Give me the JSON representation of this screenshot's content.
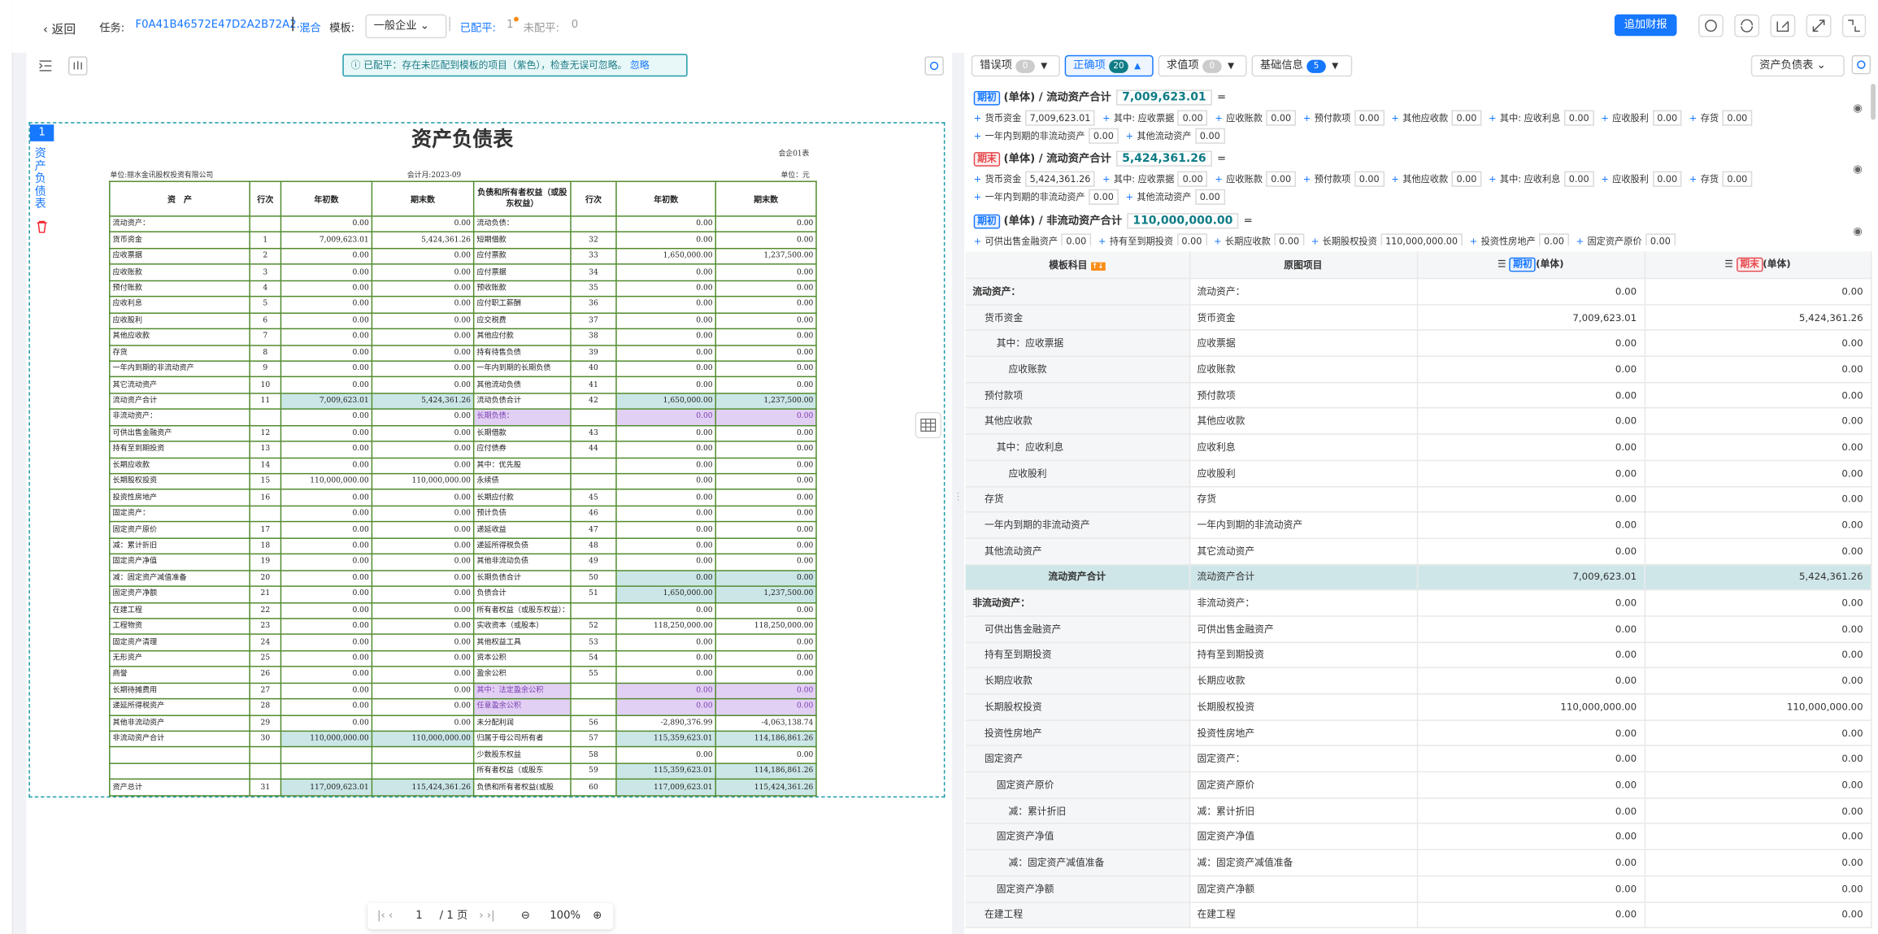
{
  "topbar": {
    "back": "返回",
    "task_label": "任务:",
    "task_id": "F0A41B46572E47D2A2B72A2...",
    "mode": "混合",
    "template_label": "模板:",
    "template": "一般企业",
    "balanced_label": "已配平:",
    "balanced": "1",
    "unbalanced_label": "未配平:",
    "unbalanced": "0",
    "append_button": "追加财报"
  },
  "left": {
    "notice": "已配平：存在未匹配到模板的项目（紫色），检查无误可忽略。",
    "ignore": "忽略",
    "page_badge": "1",
    "page_name": "资产负债表",
    "pager": {
      "current": "1",
      "total": "/ 1 页",
      "zoom": "100%"
    },
    "doc": {
      "title": "资产负债表",
      "form_no": "会企01表",
      "company": "单位:丽水金讯股权投资有限公司",
      "period": "会计月:2023-09",
      "unit": "单位：元",
      "table": {
        "header": [
          "资　产",
          "行次",
          "年初数",
          "期末数",
          "负债和所有者权益（或股东权益）",
          "行次",
          "年初数",
          "期末数"
        ],
        "rows": [
          {
            "cells": [
              "流动资产：",
              null,
              "0.00",
              "0.00",
              "流动负债：",
              null,
              "0.00",
              "0.00"
            ],
            "hl": [
              null,
              null
            ]
          },
          {
            "cells": [
              "货币资金",
              "1",
              "7,009,623.01",
              "5,424,361.26",
              "短期借款",
              "32",
              "0.00",
              "0.00"
            ],
            "hl": [
              null,
              null
            ]
          },
          {
            "cells": [
              "应收票据",
              "2",
              "0.00",
              "0.00",
              "应付票款",
              "33",
              "1,650,000.00",
              "1,237,500.00"
            ],
            "hl": [
              null,
              null
            ]
          },
          {
            "cells": [
              "应收账款",
              "3",
              "0.00",
              "0.00",
              "应付票据",
              "34",
              "0.00",
              "0.00"
            ],
            "hl": [
              null,
              null
            ]
          },
          {
            "cells": [
              "预付账款",
              "4",
              "0.00",
              "0.00",
              "预收账款",
              "35",
              "0.00",
              "0.00"
            ],
            "hl": [
              null,
              null
            ]
          },
          {
            "cells": [
              "应收利息",
              "5",
              "0.00",
              "0.00",
              "应付职工薪酬",
              "36",
              "0.00",
              "0.00"
            ],
            "hl": [
              null,
              null
            ]
          },
          {
            "cells": [
              "应收股利",
              "6",
              "0.00",
              "0.00",
              "应交税费",
              "37",
              "0.00",
              "0.00"
            ],
            "hl": [
              null,
              null
            ]
          },
          {
            "cells": [
              "其他应收款",
              "7",
              "0.00",
              "0.00",
              "其他应付款",
              "38",
              "0.00",
              "0.00"
            ],
            "hl": [
              null,
              null
            ]
          },
          {
            "cells": [
              "存货",
              "8",
              "0.00",
              "0.00",
              "持有待售负债",
              "39",
              "0.00",
              "0.00"
            ],
            "hl": [
              null,
              null
            ]
          },
          {
            "cells": [
              "一年内到期的非流动资产",
              "9",
              "0.00",
              "0.00",
              "一年内到期的长期负债",
              "40",
              "0.00",
              "0.00"
            ],
            "hl": [
              null,
              null
            ]
          },
          {
            "cells": [
              "其它流动资产",
              "10",
              "0.00",
              "0.00",
              "其他流动负债",
              "41",
              "0.00",
              "0.00"
            ],
            "hl": [
              null,
              null
            ]
          },
          {
            "cells": [
              "流动资产合计",
              "11",
              "7,009,623.01",
              "5,424,361.26",
              "流动负债合计",
              "42",
              "1,650,000.00",
              "1,237,500.00"
            ],
            "hl": [
              "teal",
              "teal"
            ]
          },
          {
            "cells": [
              "非流动资产：",
              null,
              "0.00",
              "0.00",
              "长期负债：",
              null,
              "0.00",
              "0.00"
            ],
            "hl": [
              null,
              "purple"
            ]
          },
          {
            "cells": [
              "可供出售金融资产",
              "12",
              "0.00",
              "0.00",
              "长期借款",
              "43",
              "0.00",
              "0.00"
            ],
            "hl": [
              null,
              null
            ]
          },
          {
            "cells": [
              "持有至到期投资",
              "13",
              "0.00",
              "0.00",
              "应付债券",
              "44",
              "0.00",
              "0.00"
            ],
            "hl": [
              null,
              null
            ]
          },
          {
            "cells": [
              "长期应收款",
              "14",
              "0.00",
              "0.00",
              "其中：优先股",
              null,
              "0.00",
              "0.00"
            ],
            "hl": [
              null,
              null
            ]
          },
          {
            "cells": [
              "长期股权投资",
              "15",
              "110,000,000.00",
              "110,000,000.00",
              "永续债",
              null,
              "0.00",
              "0.00"
            ],
            "hl": [
              null,
              null
            ]
          },
          {
            "cells": [
              "投资性房地产",
              "16",
              "0.00",
              "0.00",
              "长期应付款",
              "45",
              "0.00",
              "0.00"
            ],
            "hl": [
              null,
              null
            ]
          },
          {
            "cells": [
              "固定资产：",
              null,
              "0.00",
              "0.00",
              "预计负债",
              "46",
              "0.00",
              "0.00"
            ],
            "hl": [
              null,
              null
            ]
          },
          {
            "cells": [
              "固定资产原价",
              "17",
              "0.00",
              "0.00",
              "递延收益",
              "47",
              "0.00",
              "0.00"
            ],
            "hl": [
              null,
              null
            ]
          },
          {
            "cells": [
              "减：累计折旧",
              "18",
              "0.00",
              "0.00",
              "递延所得税负债",
              "48",
              "0.00",
              "0.00"
            ],
            "hl": [
              null,
              null
            ]
          },
          {
            "cells": [
              "固定资产净值",
              "19",
              "0.00",
              "0.00",
              "其他非流动负债",
              "49",
              "0.00",
              "0.00"
            ],
            "hl": [
              null,
              null
            ]
          },
          {
            "cells": [
              "减：固定资产减值准备",
              "20",
              "0.00",
              "0.00",
              "长期负债合计",
              "50",
              "0.00",
              "0.00"
            ],
            "hl": [
              null,
              "teal"
            ]
          },
          {
            "cells": [
              "固定资产净额",
              "21",
              "0.00",
              "0.00",
              "负债合计",
              "51",
              "1,650,000.00",
              "1,237,500.00"
            ],
            "hl": [
              null,
              "teal"
            ]
          },
          {
            "cells": [
              "在建工程",
              "22",
              "0.00",
              "0.00",
              "所有者权益（或股东权益）：",
              null,
              "0.00",
              "0.00"
            ],
            "hl": [
              null,
              null
            ]
          },
          {
            "cells": [
              "工程物资",
              "23",
              "0.00",
              "0.00",
              "实收资本（或股本）",
              "52",
              "118,250,000.00",
              "118,250,000.00"
            ],
            "hl": [
              null,
              null
            ]
          },
          {
            "cells": [
              "固定资产清理",
              "24",
              "0.00",
              "0.00",
              "其他权益工具",
              "53",
              "0.00",
              "0.00"
            ],
            "hl": [
              null,
              null
            ]
          },
          {
            "cells": [
              "无形资产",
              "25",
              "0.00",
              "0.00",
              "资本公积",
              "54",
              "0.00",
              "0.00"
            ],
            "hl": [
              null,
              null
            ]
          },
          {
            "cells": [
              "商誉",
              "26",
              "0.00",
              "0.00",
              "盈余公积",
              "55",
              "0.00",
              "0.00"
            ],
            "hl": [
              null,
              null
            ]
          },
          {
            "cells": [
              "长期待摊费用",
              "27",
              "0.00",
              "0.00",
              "其中：法定盈余公积",
              null,
              "0.00",
              "0.00"
            ],
            "hl": [
              null,
              "purple"
            ]
          },
          {
            "cells": [
              "递延所得税资产",
              "28",
              "0.00",
              "0.00",
              "任意盈余公积",
              null,
              "0.00",
              "0.00"
            ],
            "hl": [
              null,
              "purple"
            ]
          },
          {
            "cells": [
              "其他非流动资产",
              "29",
              "0.00",
              "0.00",
              "未分配利润",
              "56",
              "-2,890,376.99",
              "-4,063,138.74"
            ],
            "hl": [
              null,
              null
            ]
          },
          {
            "cells": [
              "非流动资产合计",
              "30",
              "110,000,000.00",
              "110,000,000.00",
              "归属于母公司所有者",
              "57",
              "115,359,623.01",
              "114,186,861.26"
            ],
            "hl": [
              "teal",
              "teal"
            ]
          },
          {
            "cells": [
              null,
              null,
              null,
              null,
              "少数股东权益",
              "58",
              "0.00",
              "0.00"
            ],
            "hl": [
              null,
              null
            ]
          },
          {
            "cells": [
              null,
              null,
              null,
              null,
              "所有者权益（或股东",
              "59",
              "115,359,623.01",
              "114,186,861.26"
            ],
            "hl": [
              null,
              "teal"
            ]
          },
          {
            "cells": [
              "资产总计",
              "31",
              "117,009,623.01",
              "115,424,361.26",
              "负债和所有者权益(或股",
              "60",
              "117,009,623.01",
              "115,424,361.26"
            ],
            "hl": [
              "teal",
              "teal"
            ]
          }
        ]
      }
    }
  },
  "right": {
    "filters": [
      {
        "label": "错误项",
        "count": "0",
        "active": false
      },
      {
        "label": "正确项",
        "count": "20",
        "active": true
      },
      {
        "label": "求值项",
        "count": "0",
        "active": false
      },
      {
        "label": "基础信息",
        "count": "5",
        "active": false
      }
    ],
    "sheet_select": "资产负债表",
    "formulas": [
      {
        "tag": "期初",
        "title": "(单体) / 流动资产合计",
        "total": "7,009,623.01",
        "equals": "=",
        "op": "+",
        "terms": [
          [
            "货币资金",
            "7,009,623.01"
          ],
          [
            "其中: 应收票据",
            "0.00"
          ],
          [
            "应收账款",
            "0.00"
          ],
          [
            "预付款项",
            "0.00"
          ],
          [
            "其他应收款",
            "0.00"
          ],
          [
            "其中: 应收利息",
            "0.00"
          ],
          [
            "应收股利",
            "0.00"
          ],
          [
            "存货",
            "0.00"
          ],
          [
            "一年内到期的非流动资产",
            "0.00"
          ],
          [
            "其他流动资产",
            "0.00"
          ]
        ]
      },
      {
        "tag": "期末",
        "title": "(单体) / 流动资产合计",
        "total": "5,424,361.26",
        "equals": "=",
        "op": "+",
        "terms": [
          [
            "货币资金",
            "5,424,361.26"
          ],
          [
            "其中: 应收票据",
            "0.00"
          ],
          [
            "应收账款",
            "0.00"
          ],
          [
            "预付款项",
            "0.00"
          ],
          [
            "其他应收款",
            "0.00"
          ],
          [
            "其中: 应收利息",
            "0.00"
          ],
          [
            "应收股利",
            "0.00"
          ],
          [
            "存货",
            "0.00"
          ],
          [
            "一年内到期的非流动资产",
            "0.00"
          ],
          [
            "其他流动资产",
            "0.00"
          ]
        ]
      },
      {
        "tag": "期初",
        "title": "(单体) / 非流动资产合计",
        "total": "110,000,000.00",
        "equals": "=",
        "op": "+",
        "terms": [
          [
            "可供出售金融资产",
            "0.00"
          ],
          [
            "持有至到期投资",
            "0.00"
          ],
          [
            "长期应收款",
            "0.00"
          ],
          [
            "长期股权投资",
            "110,000,000.00"
          ],
          [
            "投资性房地产",
            "0.00"
          ],
          [
            "固定资产原价",
            "0.00"
          ]
        ]
      }
    ],
    "table": {
      "header": {
        "template": "模板科目",
        "origin": "原图项目",
        "begin_tag": "期初",
        "end_tag": "期末",
        "unit": "(单体)"
      },
      "rows": [
        {
          "template": "流动资产：",
          "origin": "流动资产：",
          "begin": "0.00",
          "end": "0.00",
          "level": 0,
          "kind": "heading"
        },
        {
          "template": "货币资金",
          "origin": "货币资金",
          "begin": "7,009,623.01",
          "end": "5,424,361.26",
          "level": 1,
          "kind": "item"
        },
        {
          "template": "其中：应收票据",
          "origin": "应收票据",
          "begin": "0.00",
          "end": "0.00",
          "level": 2,
          "kind": "item"
        },
        {
          "template": "应收账款",
          "origin": "应收账款",
          "begin": "0.00",
          "end": "0.00",
          "level": 3,
          "kind": "item"
        },
        {
          "template": "预付款项",
          "origin": "预付款项",
          "begin": "0.00",
          "end": "0.00",
          "level": 1,
          "kind": "item"
        },
        {
          "template": "其他应收款",
          "origin": "其他应收款",
          "begin": "0.00",
          "end": "0.00",
          "level": 1,
          "kind": "item"
        },
        {
          "template": "其中：应收利息",
          "origin": "应收利息",
          "begin": "0.00",
          "end": "0.00",
          "level": 2,
          "kind": "item"
        },
        {
          "template": "应收股利",
          "origin": "应收股利",
          "begin": "0.00",
          "end": "0.00",
          "level": 3,
          "kind": "item"
        },
        {
          "template": "存货",
          "origin": "存货",
          "begin": "0.00",
          "end": "0.00",
          "level": 1,
          "kind": "item"
        },
        {
          "template": "一年内到期的非流动资产",
          "origin": "一年内到期的非流动资产",
          "begin": "0.00",
          "end": "0.00",
          "level": 1,
          "kind": "item"
        },
        {
          "template": "其他流动资产",
          "origin": "其它流动资产",
          "begin": "0.00",
          "end": "0.00",
          "level": 1,
          "kind": "item"
        },
        {
          "template": "流动资产合计",
          "origin": "流动资产合计",
          "begin": "7,009,623.01",
          "end": "5,424,361.26",
          "level": 0,
          "kind": "total"
        },
        {
          "template": "非流动资产：",
          "origin": "非流动资产：",
          "begin": "0.00",
          "end": "0.00",
          "level": 0,
          "kind": "heading"
        },
        {
          "template": "可供出售金融资产",
          "origin": "可供出售金融资产",
          "begin": "0.00",
          "end": "0.00",
          "level": 1,
          "kind": "item"
        },
        {
          "template": "持有至到期投资",
          "origin": "持有至到期投资",
          "begin": "0.00",
          "end": "0.00",
          "level": 1,
          "kind": "item"
        },
        {
          "template": "长期应收款",
          "origin": "长期应收款",
          "begin": "0.00",
          "end": "0.00",
          "level": 1,
          "kind": "item"
        },
        {
          "template": "长期股权投资",
          "origin": "长期股权投资",
          "begin": "110,000,000.00",
          "end": "110,000,000.00",
          "level": 1,
          "kind": "item"
        },
        {
          "template": "投资性房地产",
          "origin": "投资性房地产",
          "begin": "0.00",
          "end": "0.00",
          "level": 1,
          "kind": "item"
        },
        {
          "template": "固定资产",
          "origin": "固定资产：",
          "begin": "0.00",
          "end": "0.00",
          "level": 1,
          "kind": "item"
        },
        {
          "template": "固定资产原价",
          "origin": "固定资产原价",
          "begin": "0.00",
          "end": "0.00",
          "level": 2,
          "kind": "item"
        },
        {
          "template": "减：累计折旧",
          "origin": "减：累计折旧",
          "begin": "0.00",
          "end": "0.00",
          "level": 3,
          "kind": "item"
        },
        {
          "template": "固定资产净值",
          "origin": "固定资产净值",
          "begin": "0.00",
          "end": "0.00",
          "level": 2,
          "kind": "item"
        },
        {
          "template": "减：固定资产减值准备",
          "origin": "减：固定资产减值准备",
          "begin": "0.00",
          "end": "0.00",
          "level": 3,
          "kind": "item"
        },
        {
          "template": "固定资产净额",
          "origin": "固定资产净额",
          "begin": "0.00",
          "end": "0.00",
          "level": 2,
          "kind": "item"
        },
        {
          "template": "在建工程",
          "origin": "在建工程",
          "begin": "0.00",
          "end": "0.00",
          "level": 1,
          "kind": "item"
        }
      ]
    }
  }
}
